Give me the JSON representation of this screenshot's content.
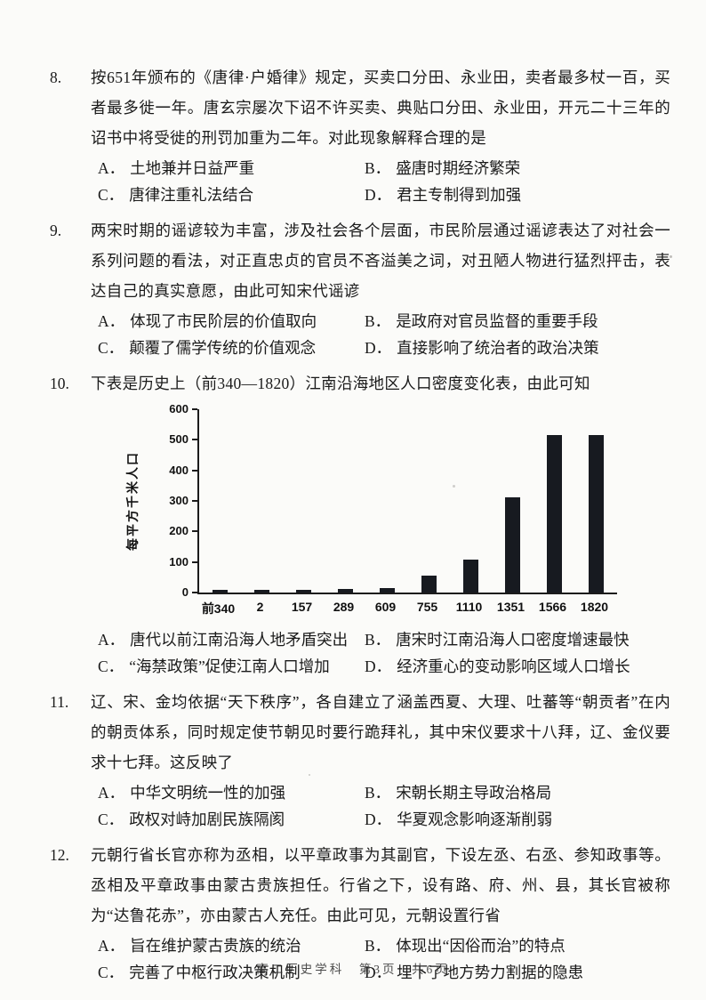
{
  "questions": [
    {
      "number": "8.",
      "stem": "按651年颁布的《唐律·户婚律》规定，买卖口分田、永业田，卖者最多杖一百，买者最多徙一年。唐玄宗屡次下诏不许买卖、典贴口分田、永业田，开元二十三年的诏书中将受徙的刑罚加重为二年。对此现象解释合理的是",
      "options": [
        {
          "label": "A．",
          "text": "土地兼并日益严重"
        },
        {
          "label": "B．",
          "text": "盛唐时期经济繁荣"
        },
        {
          "label": "C．",
          "text": "唐律注重礼法结合"
        },
        {
          "label": "D．",
          "text": "君主专制得到加强"
        }
      ]
    },
    {
      "number": "9.",
      "stem": "两宋时期的谣谚较为丰富，涉及社会各个层面，市民阶层通过谣谚表达了对社会一系列问题的看法，对正直忠贞的官员不吝溢美之词，对丑陋人物进行猛烈抨击，表达自己的真实意愿，由此可知宋代谣谚",
      "options": [
        {
          "label": "A．",
          "text": "体现了市民阶层的价值取向"
        },
        {
          "label": "B．",
          "text": "是政府对官员监督的重要手段"
        },
        {
          "label": "C．",
          "text": "颠覆了儒学传统的价值观念"
        },
        {
          "label": "D．",
          "text": "直接影响了统治者的政治决策"
        }
      ]
    },
    {
      "number": "10.",
      "stem": "下表是历史上（前340—1820）江南沿海地区人口密度变化表，由此可知",
      "options": [
        {
          "label": "A．",
          "text": "唐代以前江南沿海人地矛盾突出"
        },
        {
          "label": "B．",
          "text": "唐宋时江南沿海人口密度增速最快"
        },
        {
          "label": "C．",
          "text": "“海禁政策”促使江南人口增加"
        },
        {
          "label": "D．",
          "text": "经济重心的变动影响区域人口增长"
        }
      ]
    },
    {
      "number": "11.",
      "stem": "辽、宋、金均依据“天下秩序”，各自建立了涵盖西夏、大理、吐蕃等“朝贡者”在内的朝贡体系，同时规定使节朝见时要行跪拜礼，其中宋仪要求十八拜，辽、金仪要求十七拜。这反映了",
      "options": [
        {
          "label": "A．",
          "text": "中华文明统一性的加强"
        },
        {
          "label": "B．",
          "text": "宋朝长期主导政治格局"
        },
        {
          "label": "C．",
          "text": "政权对峙加剧民族隔阂"
        },
        {
          "label": "D．",
          "text": "华夏观念影响逐渐削弱"
        }
      ]
    },
    {
      "number": "12.",
      "stem": "元朝行省长官亦称为丞相，以平章政事为其副官，下设左丞、右丞、参知政事等。丞相及平章政事由蒙古贵族担任。行省之下，设有路、府、州、县，其长官被称为“达鲁花赤”，亦由蒙古人充任。由此可见，元朝设置行省",
      "options": [
        {
          "label": "A．",
          "text": "旨在维护蒙古贵族的统治"
        },
        {
          "label": "B．",
          "text": "体现出“因俗而治”的特点"
        },
        {
          "label": "C．",
          "text": "完善了中枢行政决策机制"
        },
        {
          "label": "D．",
          "text": "埋下了地方势力割据的隐患"
        }
      ]
    }
  ],
  "chart_data": {
    "type": "bar",
    "title": "",
    "xlabel": "",
    "ylabel": "每平方千米人口",
    "categories": [
      "前340",
      "2",
      "157",
      "289",
      "609",
      "755",
      "1110",
      "1351",
      "1566",
      "1820"
    ],
    "values": [
      10,
      9,
      9,
      12,
      14,
      55,
      107,
      312,
      515,
      515
    ],
    "ylim": [
      0,
      600
    ],
    "yticks": [
      0,
      100,
      200,
      300,
      400,
      500,
      600
    ],
    "grid": "off",
    "legend": "none",
    "bar_color": "#171a20"
  },
  "footer": {
    "text": "高二历史学科　第3页　共6页"
  },
  "colors": {
    "ink": "#1a1a1a",
    "paper": "#fbfbf9",
    "bar": "#171a20"
  }
}
